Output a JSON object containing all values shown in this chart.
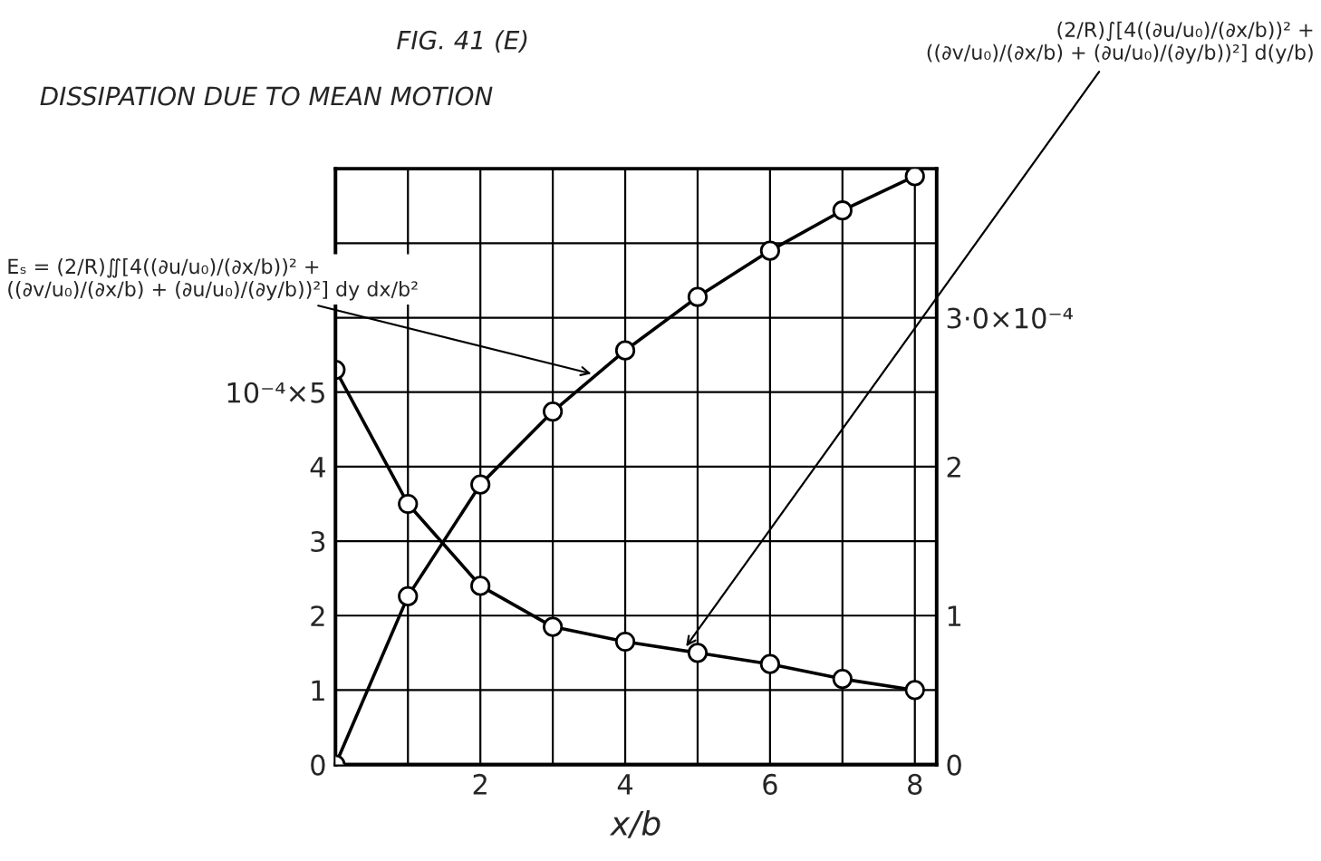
{
  "chart_data": {
    "type": "line",
    "title": "FIG. 41 (E)",
    "subtitle": "DISSIPATION DUE TO MEAN MOTION",
    "xlabel": "x/b",
    "x": [
      0,
      1,
      2,
      3,
      4,
      5,
      6,
      7,
      8
    ],
    "series": [
      {
        "name": "Eₛ = (2/R)∬[4((∂u/u₀)/(∂x/b))² +\n((∂v/u₀)/(∂x/b) + (∂u/u₀)/(∂y/b))²] dy dx/b²",
        "color": "#000000",
        "axis": "y2",
        "values": [
          0,
          1.13,
          1.88,
          2.37,
          2.78,
          3.14,
          3.45,
          3.72,
          3.95
        ]
      },
      {
        "name": "(2/R)∫[4((∂u/u₀)/(∂x/b))² +\n((∂v/u₀)/(∂x/b) + (∂u/u₀)/(∂y/b))²] d(y/b)",
        "color": "#000000",
        "values": [
          5.3,
          3.5,
          2.4,
          1.85,
          1.65,
          1.5,
          1.35,
          1.15,
          1.0
        ]
      }
    ],
    "marker": "circle",
    "line_style": "solid",
    "grid": true,
    "legend": false,
    "xlim": [
      0,
      8.3
    ],
    "xticks": [
      {
        "value": 0,
        "label": null
      },
      {
        "value": 1,
        "label": null
      },
      2,
      {
        "value": 3,
        "label": null
      },
      4,
      {
        "value": 5,
        "label": null
      },
      6,
      {
        "value": 7,
        "label": null
      },
      8
    ],
    "ylim": [
      0,
      8
    ],
    "yticks": [
      0,
      1,
      2,
      3,
      4,
      {
        "value": 5,
        "label": "10⁻⁴×5"
      },
      {
        "value": 6,
        "label": null
      },
      {
        "value": 7,
        "label": null
      },
      {
        "value": 8,
        "label": null
      }
    ],
    "y2lim": [
      0,
      4
    ],
    "y2ticks": [
      0,
      1,
      2,
      {
        "value": 3,
        "label": "3·0×10⁻⁴"
      }
    ]
  }
}
